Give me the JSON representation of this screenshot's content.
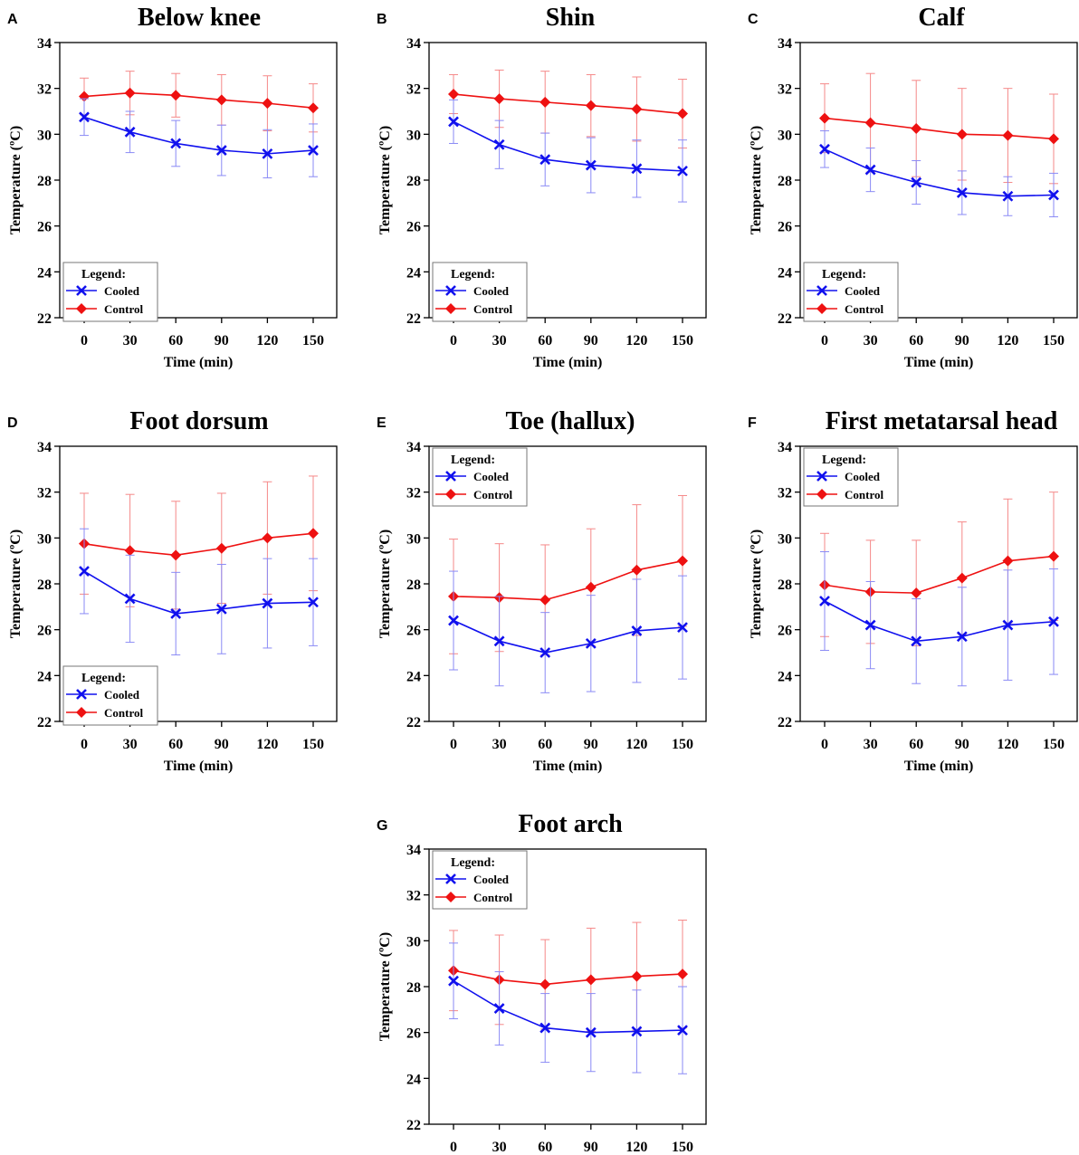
{
  "figure": {
    "legend_title": "Legend:",
    "colors": {
      "cooled": "#1010ee",
      "control": "#ee1111",
      "cooled_error": "#8a8af5",
      "control_error": "#f58888"
    }
  },
  "chart_data": [
    {
      "panel": "A",
      "title": "Below knee",
      "type": "line",
      "xlabel": "Time (min)",
      "ylabel": "Temperature (ºC)",
      "x": [
        0,
        30,
        60,
        90,
        120,
        150
      ],
      "x_ticks": [
        "0",
        "30",
        "60",
        "90",
        "120",
        "150"
      ],
      "ylim": [
        22,
        34
      ],
      "y_ticks": [
        "22",
        "24",
        "26",
        "28",
        "30",
        "32",
        "34"
      ],
      "legend_position": "bottom-left",
      "series": [
        {
          "name": "Cooled",
          "marker": "x",
          "values": [
            30.75,
            30.1,
            29.6,
            29.3,
            29.15,
            29.3
          ],
          "error": [
            0.8,
            0.9,
            1.0,
            1.1,
            1.05,
            1.15
          ]
        },
        {
          "name": "Control",
          "marker": "diamond",
          "values": [
            31.65,
            31.8,
            31.7,
            31.5,
            31.35,
            31.15
          ],
          "error": [
            0.8,
            0.95,
            0.95,
            1.1,
            1.2,
            1.05
          ]
        }
      ]
    },
    {
      "panel": "B",
      "title": "Shin",
      "type": "line",
      "xlabel": "Time (min)",
      "ylabel": "Temperature (ºC)",
      "x": [
        0,
        30,
        60,
        90,
        120,
        150
      ],
      "x_ticks": [
        "0",
        "30",
        "60",
        "90",
        "120",
        "150"
      ],
      "ylim": [
        22,
        34
      ],
      "y_ticks": [
        "22",
        "24",
        "26",
        "28",
        "30",
        "32",
        "34"
      ],
      "legend_position": "bottom-left",
      "series": [
        {
          "name": "Cooled",
          "marker": "x",
          "values": [
            30.55,
            29.55,
            28.9,
            28.65,
            28.5,
            28.4
          ],
          "error": [
            0.95,
            1.05,
            1.15,
            1.2,
            1.25,
            1.35
          ]
        },
        {
          "name": "Control",
          "marker": "diamond",
          "values": [
            31.75,
            31.55,
            31.4,
            31.25,
            31.1,
            30.9
          ],
          "error": [
            0.85,
            1.25,
            1.35,
            1.35,
            1.4,
            1.5
          ]
        }
      ]
    },
    {
      "panel": "C",
      "title": "Calf",
      "type": "line",
      "xlabel": "Time (min)",
      "ylabel": "Temperature (ºC)",
      "x": [
        0,
        30,
        60,
        90,
        120,
        150
      ],
      "x_ticks": [
        "0",
        "30",
        "60",
        "90",
        "120",
        "150"
      ],
      "ylim": [
        22,
        34
      ],
      "y_ticks": [
        "22",
        "24",
        "26",
        "28",
        "30",
        "32",
        "34"
      ],
      "legend_position": "bottom-left",
      "series": [
        {
          "name": "Cooled",
          "marker": "x",
          "values": [
            29.35,
            28.45,
            27.9,
            27.45,
            27.3,
            27.35
          ],
          "error": [
            0.8,
            0.95,
            0.95,
            0.95,
            0.85,
            0.95
          ]
        },
        {
          "name": "Control",
          "marker": "diamond",
          "values": [
            30.7,
            30.5,
            30.25,
            30.0,
            29.95,
            29.8
          ],
          "error": [
            1.5,
            2.15,
            2.1,
            2.0,
            2.05,
            1.95
          ]
        }
      ]
    },
    {
      "panel": "D",
      "title": "Foot dorsum",
      "type": "line",
      "xlabel": "Time (min)",
      "ylabel": "Temperature (ºC)",
      "x": [
        0,
        30,
        60,
        90,
        120,
        150
      ],
      "x_ticks": [
        "0",
        "30",
        "60",
        "90",
        "120",
        "150"
      ],
      "ylim": [
        22,
        34
      ],
      "y_ticks": [
        "22",
        "24",
        "26",
        "28",
        "30",
        "32",
        "34"
      ],
      "legend_position": "bottom-left",
      "series": [
        {
          "name": "Cooled",
          "marker": "x",
          "values": [
            28.55,
            27.35,
            26.7,
            26.9,
            27.15,
            27.2
          ],
          "error": [
            1.85,
            1.9,
            1.8,
            1.95,
            1.95,
            1.9
          ]
        },
        {
          "name": "Control",
          "marker": "diamond",
          "values": [
            29.75,
            29.45,
            29.25,
            29.55,
            30.0,
            30.2
          ],
          "error": [
            2.2,
            2.45,
            2.35,
            2.4,
            2.45,
            2.5
          ]
        }
      ]
    },
    {
      "panel": "E",
      "title": "Toe (hallux)",
      "type": "line",
      "xlabel": "Time (min)",
      "ylabel": "Temperature (ºC)",
      "x": [
        0,
        30,
        60,
        90,
        120,
        150
      ],
      "x_ticks": [
        "0",
        "30",
        "60",
        "90",
        "120",
        "150"
      ],
      "ylim": [
        22,
        34
      ],
      "y_ticks": [
        "22",
        "24",
        "26",
        "28",
        "30",
        "32",
        "34"
      ],
      "legend_position": "top-left",
      "series": [
        {
          "name": "Cooled",
          "marker": "x",
          "values": [
            26.4,
            25.5,
            25.0,
            25.4,
            25.95,
            26.1
          ],
          "error": [
            2.15,
            1.95,
            1.75,
            2.1,
            2.25,
            2.25
          ]
        },
        {
          "name": "Control",
          "marker": "diamond",
          "values": [
            27.45,
            27.4,
            27.3,
            27.85,
            28.6,
            29.0
          ],
          "error": [
            2.5,
            2.35,
            2.4,
            2.55,
            2.85,
            2.85
          ]
        }
      ]
    },
    {
      "panel": "F",
      "title": "First metatarsal head",
      "type": "line",
      "xlabel": "Time (min)",
      "ylabel": "Temperature (ºC)",
      "x": [
        0,
        30,
        60,
        90,
        120,
        150
      ],
      "x_ticks": [
        "0",
        "30",
        "60",
        "90",
        "120",
        "150"
      ],
      "ylim": [
        22,
        34
      ],
      "y_ticks": [
        "22",
        "24",
        "26",
        "28",
        "30",
        "32",
        "34"
      ],
      "legend_position": "top-left",
      "series": [
        {
          "name": "Cooled",
          "marker": "x",
          "values": [
            27.25,
            26.2,
            25.5,
            25.7,
            26.2,
            26.35
          ],
          "error": [
            2.15,
            1.9,
            1.85,
            2.15,
            2.4,
            2.3
          ]
        },
        {
          "name": "Control",
          "marker": "diamond",
          "values": [
            27.95,
            27.65,
            27.6,
            28.25,
            29.0,
            29.2
          ],
          "error": [
            2.25,
            2.25,
            2.3,
            2.45,
            2.7,
            2.8
          ]
        }
      ]
    },
    {
      "panel": "G",
      "title": "Foot arch",
      "type": "line",
      "xlabel": "",
      "ylabel": "Temperature (ºC)",
      "x": [
        0,
        30,
        60,
        90,
        120,
        150
      ],
      "x_ticks": [
        "0",
        "30",
        "60",
        "90",
        "120",
        "150"
      ],
      "ylim": [
        22,
        34
      ],
      "y_ticks": [
        "22",
        "24",
        "26",
        "28",
        "30",
        "32",
        "34"
      ],
      "legend_position": "top-left",
      "series": [
        {
          "name": "Cooled",
          "marker": "x",
          "values": [
            28.25,
            27.05,
            26.2,
            26.0,
            26.05,
            26.1
          ],
          "error": [
            1.65,
            1.6,
            1.5,
            1.7,
            1.8,
            1.9
          ]
        },
        {
          "name": "Control",
          "marker": "diamond",
          "values": [
            28.7,
            28.3,
            28.1,
            28.3,
            28.45,
            28.55
          ],
          "error": [
            1.75,
            1.95,
            1.95,
            2.25,
            2.35,
            2.35
          ]
        }
      ]
    }
  ]
}
